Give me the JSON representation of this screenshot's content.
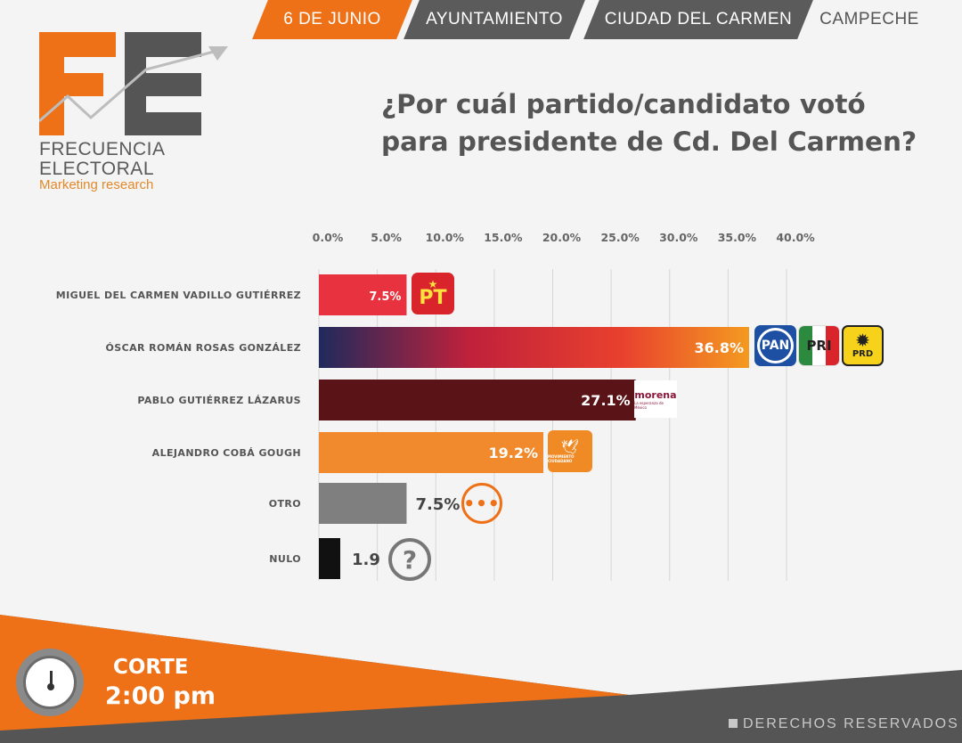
{
  "header": {
    "tabs": [
      "6 DE JUNIO",
      "AYUNTAMIENTO",
      "CIUDAD DEL CARMEN",
      "CAMPECHE"
    ]
  },
  "logo": {
    "monogram": "FE",
    "line1": "FRECUENCIA",
    "line2": "ELECTORAL",
    "line3": "Marketing research"
  },
  "title_line1": "¿Por cuál partido/candidato votó",
  "title_line2": "para presidente de Cd. Del Carmen?",
  "chart_data": {
    "type": "bar",
    "orientation": "horizontal",
    "title": "¿Por cuál partido/candidato votó para presidente de Cd. Del Carmen?",
    "xlim": [
      0,
      40
    ],
    "ticks": [
      "0.0%",
      "5.0%",
      "10.0%",
      "15.0%",
      "20.0%",
      "25.0%",
      "30.0%",
      "35.0%",
      "40.0%"
    ],
    "tick_values": [
      0,
      5,
      10,
      15,
      20,
      25,
      30,
      35,
      40
    ],
    "grid": true,
    "categories": [
      "MIGUEL DEL CARMEN VADILLO GUTIÉRREZ",
      "ÓSCAR ROMÁN ROSAS GONZÁLEZ",
      "PABLO GUTIÉRREZ LÁZARUS",
      "ALEJANDRO COBÁ GOUGH",
      "OTRO",
      "NULO"
    ],
    "values": [
      7.5,
      36.8,
      27.1,
      19.2,
      7.5,
      1.9
    ],
    "value_labels": [
      "7.5%",
      "36.8%",
      "27.1%",
      "19.2%",
      "7.5%",
      "1.9"
    ],
    "bar_colors": [
      "#e8323f",
      "gradient",
      "#5a1418",
      "#f08a2c",
      "#7f7f7f",
      "#111111"
    ]
  },
  "party_logos": {
    "pt": "PT",
    "pan": "PAN",
    "pri": "PRI",
    "prd": "PRD",
    "morena": "morena",
    "morena_sub": "La esperanza de México",
    "mc": "MOVIMIENTO CIUDADANO",
    "otro": "•••",
    "nulo": "?"
  },
  "footer": {
    "corte_label": "CORTE",
    "corte_time": "2:00 pm",
    "rights": "DERECHOS RESERVADOS"
  },
  "colors": {
    "orange": "#ee7118",
    "dark_gray": "#5b5b5b",
    "background": "#f4f4f4"
  }
}
